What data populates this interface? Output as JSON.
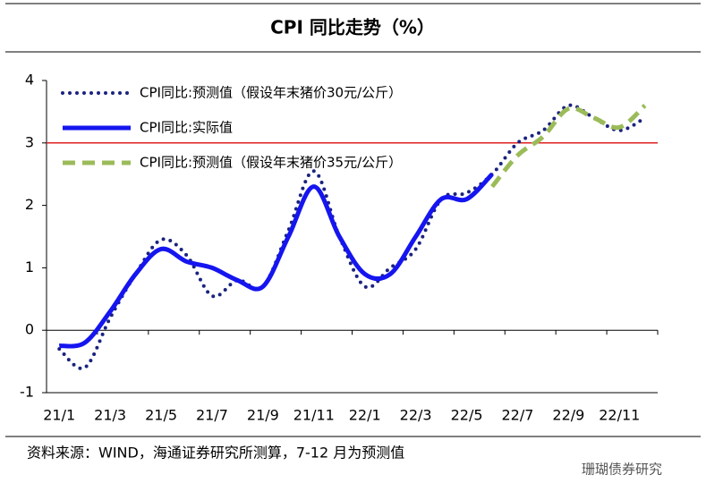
{
  "chart_data": {
    "type": "line",
    "title": "CPI 同比走势（%）",
    "categories": [
      "21/1",
      null,
      "21/3",
      null,
      "21/5",
      null,
      "21/7",
      null,
      "21/9",
      null,
      "21/11",
      null,
      "22/1",
      null,
      "22/3",
      null,
      "22/5",
      null,
      "22/7",
      null,
      "22/9",
      null,
      "22/11",
      null
    ],
    "series": [
      {
        "name": "CPI同比:预测值（假设年末猪价30元/公斤）",
        "color": "#1a237e",
        "style": "dotted",
        "values": [
          -0.3,
          -0.6,
          0.2,
          0.9,
          1.45,
          1.2,
          0.55,
          0.8,
          0.7,
          1.6,
          2.55,
          1.5,
          0.7,
          1.0,
          1.3,
          2.1,
          2.2,
          2.5,
          3.0,
          3.2,
          3.6,
          3.4,
          3.2,
          3.4
        ]
      },
      {
        "name": "CPI同比:实际值",
        "color": "#1515f0",
        "style": "solid",
        "values": [
          -0.25,
          -0.2,
          0.3,
          0.9,
          1.3,
          1.1,
          1.0,
          0.8,
          0.7,
          1.5,
          2.3,
          1.5,
          0.9,
          0.9,
          1.5,
          2.1,
          2.1,
          2.5,
          null,
          null,
          null,
          null,
          null,
          null
        ]
      },
      {
        "name": "CPI同比:预测值（假设年末猪价35元/公斤）",
        "color": "#9bbb59",
        "style": "dashed",
        "values": [
          null,
          null,
          null,
          null,
          null,
          null,
          null,
          null,
          null,
          null,
          null,
          null,
          null,
          null,
          null,
          null,
          null,
          2.3,
          2.8,
          3.1,
          3.55,
          3.4,
          3.25,
          3.6
        ]
      }
    ],
    "reference_line": {
      "value": 3,
      "color": "#e02020"
    },
    "ylim": [
      -1,
      4
    ],
    "yticks": [
      -1,
      0,
      1,
      2,
      3,
      4
    ],
    "legend": "upper-left",
    "source": "资料来源：WIND，海通证券研究所测算，7-12 月为预测值",
    "watermark": "珊瑚债券研究"
  }
}
